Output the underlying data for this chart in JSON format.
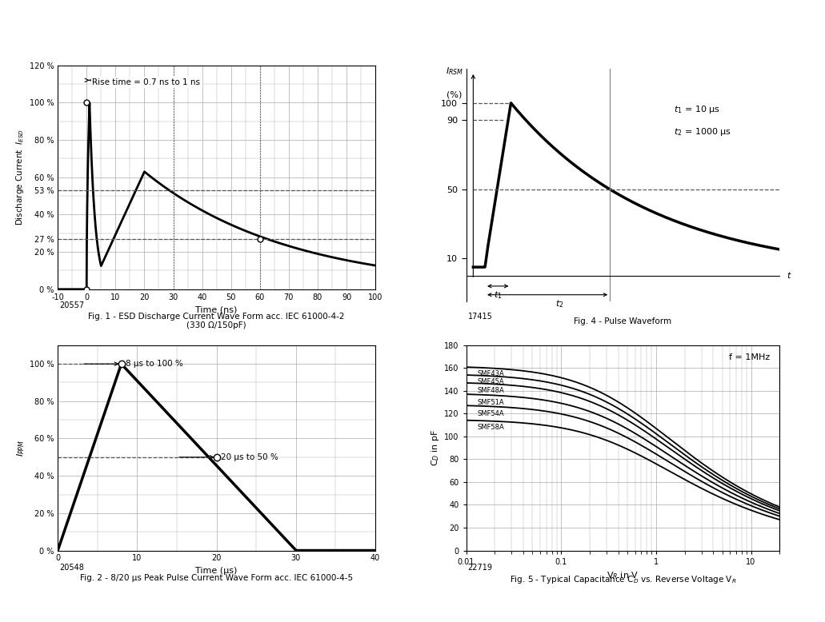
{
  "fig1": {
    "title": "Fig. 1 - ESD Discharge Current Wave Form acc. IEC 61000-4-2\n(330 Ω/150pF)",
    "xlabel": "Time (ns)",
    "code": "20557",
    "xlim": [
      -10,
      100
    ],
    "ylim": [
      0,
      120
    ],
    "yticks": [
      0,
      20,
      27,
      40,
      53,
      60,
      80,
      100,
      120
    ],
    "ytick_labels": [
      "0 %",
      "20 %",
      "27 %",
      "40 %",
      "53 %",
      "60 %",
      "80 %",
      "100 %",
      "120 %"
    ],
    "xticks": [
      -10,
      0,
      10,
      20,
      30,
      40,
      50,
      60,
      70,
      80,
      90,
      100
    ],
    "xtick_labels": [
      "-10",
      "0",
      "10",
      "20",
      "30",
      "40",
      "50",
      "60",
      "70",
      "80",
      "90",
      "100"
    ],
    "annotation_rise": "Rise time = 0.7 ns to 1 ns",
    "dashed_53": 53,
    "dashed_27": 27,
    "dashed_x30": 30,
    "dashed_x60": 60
  },
  "fig2": {
    "title": "Fig. 2 - 8/20 μs Peak Pulse Current Wave Form acc. IEC 61000-4-5",
    "xlabel": "Time (μs)",
    "code": "20548",
    "xlim": [
      0,
      40
    ],
    "ylim": [
      0,
      110
    ],
    "yticks": [
      0,
      20,
      40,
      60,
      80,
      100
    ],
    "ytick_labels": [
      "0 %",
      "20 %",
      "40 %",
      "60 %",
      "80 %",
      "100 %"
    ],
    "xticks": [
      0,
      10,
      20,
      30,
      40
    ],
    "xtick_labels": [
      "0",
      "10",
      "20",
      "30",
      "40"
    ],
    "ann1": "8 μs to 100 %",
    "ann2": "20 μs to 50 %"
  },
  "fig4": {
    "title": "Fig. 4 - Pulse Waveform",
    "code": "17415",
    "yticks": [
      10,
      50,
      90,
      100
    ],
    "ytick_labels": [
      "10",
      "50",
      "90",
      "100"
    ],
    "ann_t1": "t₁ = 10 μs",
    "ann_t2": "t₂ = 1000 μs"
  },
  "fig5": {
    "title": "Fig. 5 - Typical Capacitance C$_D$ vs. Reverse Voltage V$_R$",
    "xlabel": "V$_R$ in V",
    "ylabel": "C$_D$ in pF",
    "code": "22719",
    "ylim": [
      0,
      180
    ],
    "yticks": [
      0,
      20,
      40,
      60,
      80,
      100,
      120,
      140,
      160,
      180
    ],
    "ytick_labels": [
      "0",
      "20",
      "40",
      "60",
      "80",
      "100",
      "120",
      "140",
      "160",
      "180"
    ],
    "annotation_f": "f = 1MHz",
    "series_labels": [
      "SMF43A",
      "SMF45A",
      "SMF48A",
      "SMF51A",
      "SMF54A",
      "SMF58A"
    ],
    "base_caps": [
      162,
      155,
      148,
      138,
      128,
      115
    ],
    "Vj": [
      0.6,
      0.6,
      0.6,
      0.6,
      0.6,
      0.6
    ],
    "m": [
      0.42,
      0.42,
      0.42,
      0.42,
      0.42,
      0.42
    ]
  },
  "background_color": "#ffffff",
  "line_color": "#000000",
  "grid_color": "#aaaaaa",
  "dashed_color": "#555555"
}
